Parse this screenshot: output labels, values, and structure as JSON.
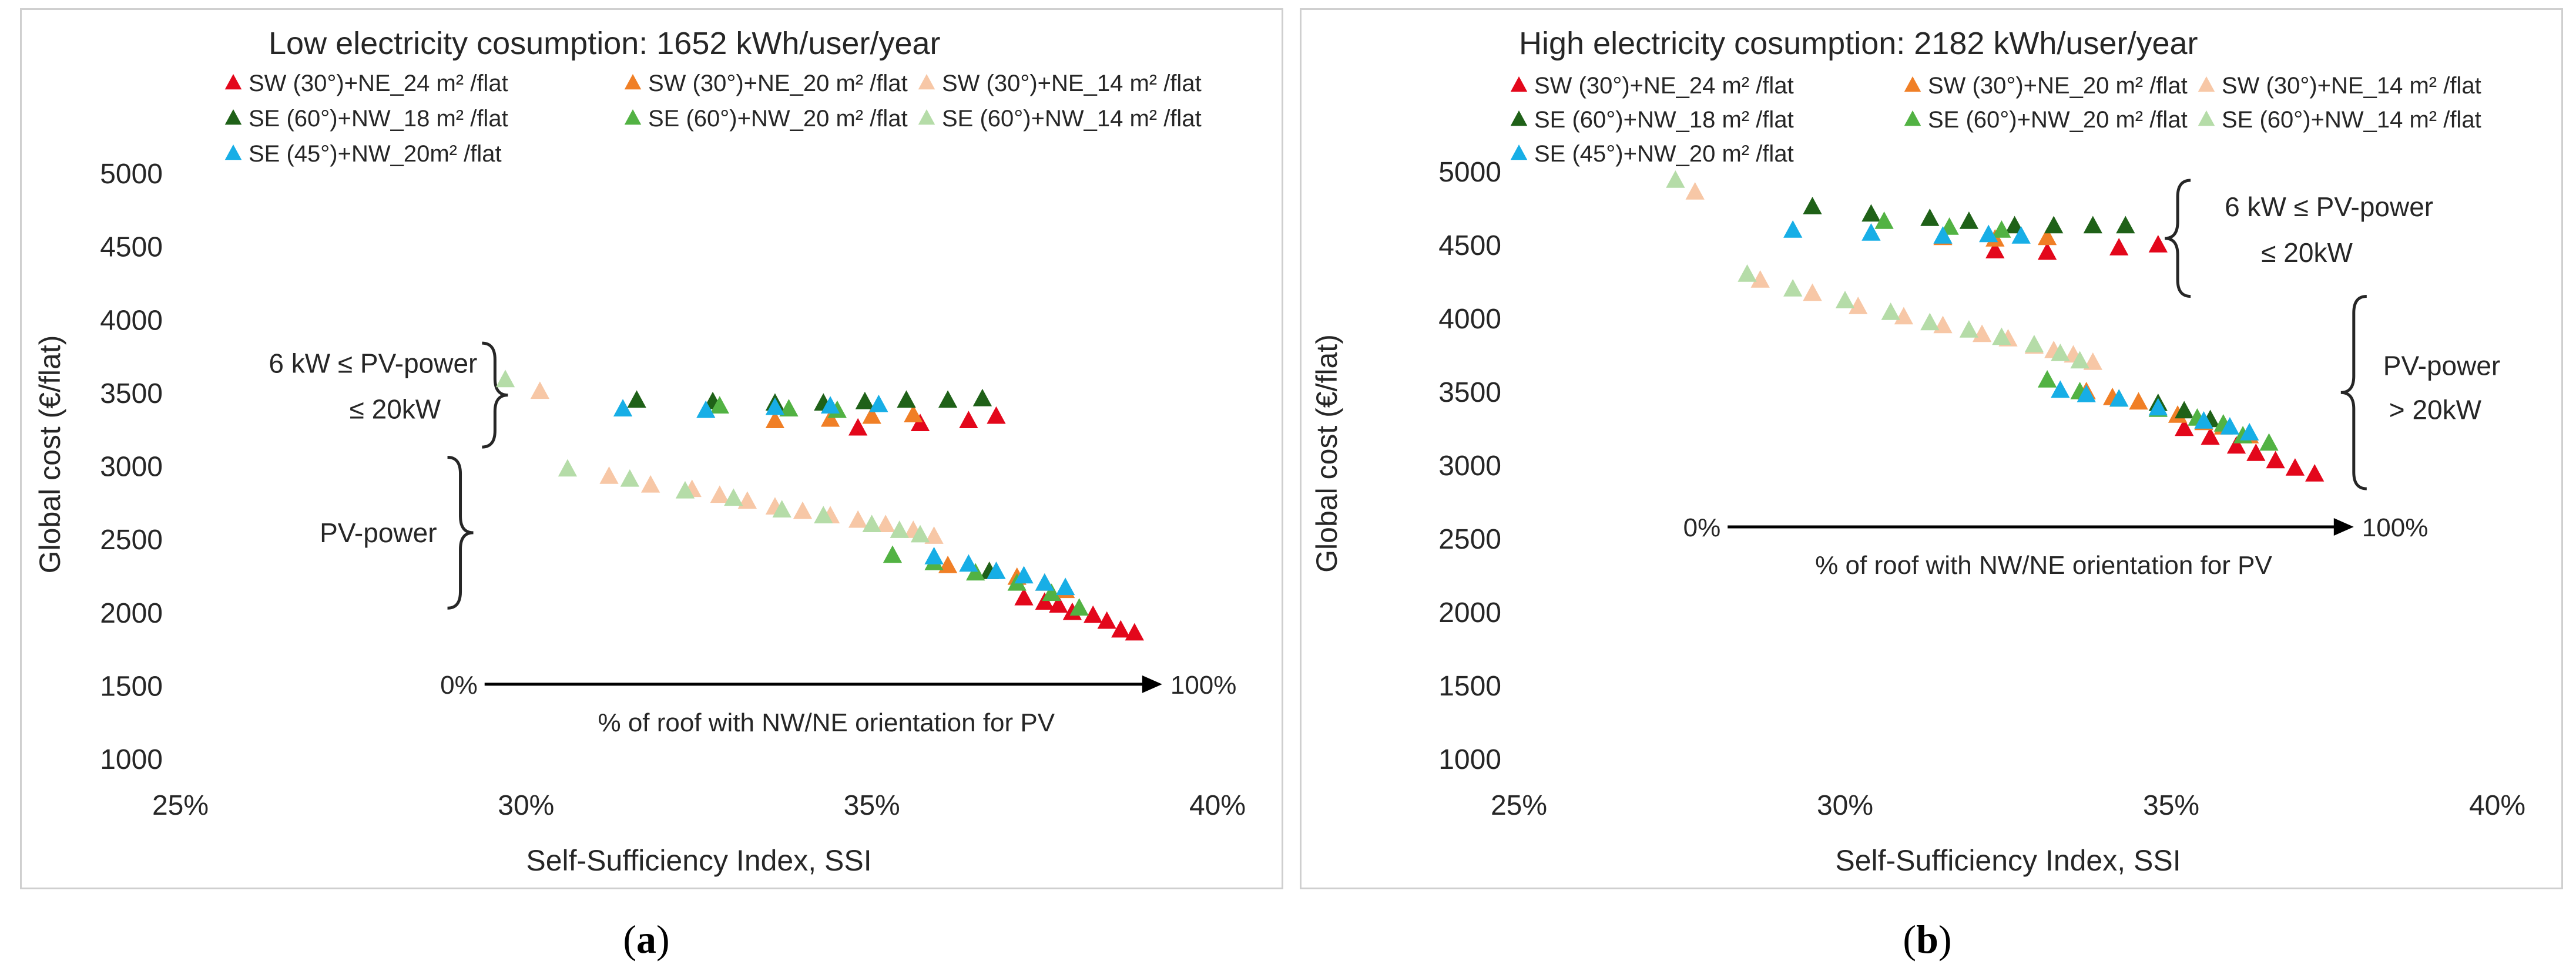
{
  "colors": {
    "sw24": "#e3071b",
    "sw20": "#f07f26",
    "sw14": "#f7c7a6",
    "se18": "#1f6118",
    "se20": "#52b243",
    "se14": "#b5dca8",
    "se45": "#17aee6"
  },
  "captions": {
    "a": "a",
    "b": "b"
  },
  "chart_data": [
    {
      "type": "scatter",
      "title": "Low electricity cosumption: 1652 kWh/user/year",
      "xlabel": "Self-Sufficiency Index, SSI",
      "ylabel": "Global cost (€/flat)",
      "xlim": [
        0.25,
        0.4
      ],
      "ylim": [
        1000,
        5000
      ],
      "xticks": [
        0.25,
        0.3,
        0.35,
        0.4
      ],
      "xtick_labels": [
        "25%",
        "30%",
        "35%",
        "40%"
      ],
      "yticks": [
        1000,
        1500,
        2000,
        2500,
        3000,
        3500,
        4000,
        4500,
        5000
      ],
      "ytick_labels": [
        "1000",
        "1500",
        "2000",
        "2500",
        "3000",
        "3500",
        "4000",
        "4500",
        "5000"
      ],
      "grid": false,
      "legend_placement": "top-left",
      "series": [
        {
          "name": "SW (30°)+NE_24 m² /flat",
          "color_key": "sw24",
          "legend_row": 0,
          "legend_col": 0,
          "x": [
            0.348,
            0.357,
            0.364,
            0.368,
            0.372,
            0.375,
            0.377,
            0.379,
            0.382,
            0.384,
            0.386,
            0.388
          ],
          "y": [
            3260,
            3290,
            3310,
            3340,
            2100,
            2070,
            2050,
            2000,
            1980,
            1940,
            1880,
            1860
          ]
        },
        {
          "name": "SW (30°)+NE_20 m² /flat",
          "color_key": "sw20",
          "legend_row": 0,
          "legend_col": 1,
          "x": [
            0.336,
            0.344,
            0.35,
            0.356,
            0.361,
            0.367,
            0.371,
            0.375,
            0.378
          ],
          "y": [
            3310,
            3320,
            3340,
            3350,
            2320,
            2280,
            2240,
            2200,
            2150
          ]
        },
        {
          "name": "SW (30°)+NE_14 m² /flat",
          "color_key": "sw14",
          "legend_row": 0,
          "legend_col": 2,
          "x": [
            0.302,
            0.312,
            0.318,
            0.324,
            0.328,
            0.332,
            0.336,
            0.34,
            0.344,
            0.348,
            0.352,
            0.356,
            0.359
          ],
          "y": [
            3510,
            2930,
            2870,
            2840,
            2800,
            2760,
            2720,
            2690,
            2660,
            2630,
            2600,
            2560,
            2520
          ]
        },
        {
          "name": "SE (60°)+NW_18 m² /flat",
          "color_key": "se18",
          "legend_row": 1,
          "legend_col": 0,
          "x": [
            0.316,
            0.327,
            0.336,
            0.343,
            0.349,
            0.355,
            0.361,
            0.366,
            0.367
          ],
          "y": [
            3450,
            3440,
            3430,
            3430,
            3440,
            3450,
            3450,
            3460,
            2280
          ]
        },
        {
          "name": "SE (60°)+NW_20 m² /flat",
          "color_key": "se20",
          "legend_row": 1,
          "legend_col": 1,
          "x": [
            0.328,
            0.338,
            0.345,
            0.353,
            0.359,
            0.365,
            0.371,
            0.376,
            0.38
          ],
          "y": [
            3410,
            3390,
            3380,
            2390,
            2340,
            2270,
            2200,
            2130,
            2030
          ]
        },
        {
          "name": "SE (60°)+NW_14 m² /flat",
          "color_key": "se14",
          "legend_row": 1,
          "legend_col": 2,
          "x": [
            0.297,
            0.306,
            0.315,
            0.323,
            0.33,
            0.337,
            0.343,
            0.35,
            0.354,
            0.357
          ],
          "y": [
            3590,
            2980,
            2910,
            2830,
            2780,
            2700,
            2660,
            2600,
            2560,
            2530
          ]
        },
        {
          "name": "SE (45°)+NW_20m² /flat",
          "color_key": "se45",
          "legend_row": 2,
          "legend_col": 0,
          "x": [
            0.314,
            0.326,
            0.336,
            0.344,
            0.351,
            0.359,
            0.364,
            0.368,
            0.372,
            0.375,
            0.378
          ],
          "y": [
            3390,
            3380,
            3400,
            3410,
            3420,
            2380,
            2330,
            2280,
            2250,
            2200,
            2170
          ]
        }
      ],
      "annotations": [
        {
          "kind": "brace",
          "y_from": 3130,
          "y_to": 3840,
          "x_at": 0.2955,
          "text_lines": [
            "6 kW ≤ PV-power",
            "≤   20kW"
          ]
        },
        {
          "kind": "brace",
          "y_from": 2030,
          "y_to": 3060,
          "x_at": 0.2905,
          "text_lines": [
            "PV-power"
          ]
        },
        {
          "kind": "arrow",
          "y_at": 1510,
          "x_from": 0.294,
          "x_to": 0.392,
          "start_label": "0%",
          "end_label": "100%",
          "text": "% of roof with NW/NE orientation for PV"
        }
      ]
    },
    {
      "type": "scatter",
      "title": "High electricity cosumption: 2182 kWh/user/year",
      "xlabel": "Self-Sufficiency Index, SSI",
      "ylabel": "Global cost (€/flat)",
      "xlim": [
        0.25,
        0.4
      ],
      "ylim": [
        1000,
        5000
      ],
      "xticks": [
        0.25,
        0.3,
        0.35,
        0.4
      ],
      "xtick_labels": [
        "25%",
        "30%",
        "35%",
        "40%"
      ],
      "yticks": [
        1000,
        1500,
        2000,
        2500,
        3000,
        3500,
        4000,
        4500,
        5000
      ],
      "ytick_labels": [
        "1000",
        "1500",
        "2000",
        "2500",
        "3000",
        "3500",
        "4000",
        "4500",
        "5000"
      ],
      "grid": false,
      "legend_placement": "top-left",
      "series": [
        {
          "name": "SW (30°)+NE_24 m² /flat",
          "color_key": "sw24",
          "legend_row": 0,
          "legend_col": 0,
          "x": [
            0.323,
            0.331,
            0.342,
            0.348,
            0.352,
            0.356,
            0.36,
            0.363,
            0.366,
            0.369,
            0.372
          ],
          "y": [
            4460,
            4450,
            4480,
            4500,
            3250,
            3190,
            3130,
            3080,
            3030,
            2980,
            2940
          ]
        },
        {
          "name": "SW (30°)+NE_20 m² /flat",
          "color_key": "sw20",
          "legend_row": 0,
          "legend_col": 1,
          "x": [
            0.315,
            0.323,
            0.331,
            0.337,
            0.341,
            0.345,
            0.351,
            0.355,
            0.358,
            0.362
          ],
          "y": [
            4550,
            4540,
            4550,
            3500,
            3460,
            3430,
            3340,
            3290,
            3260,
            3200
          ]
        },
        {
          "name": "SW (30°)+NE_14 m² /flat",
          "color_key": "sw14",
          "legend_row": 0,
          "legend_col": 2,
          "x": [
            0.277,
            0.287,
            0.295,
            0.302,
            0.309,
            0.315,
            0.321,
            0.325,
            0.329,
            0.332,
            0.335,
            0.338
          ],
          "y": [
            4860,
            4260,
            4170,
            4080,
            4010,
            3950,
            3890,
            3860,
            3810,
            3780,
            3750,
            3700
          ]
        },
        {
          "name": "SE (60°)+NW_18 m² /flat",
          "color_key": "se18",
          "legend_row": 1,
          "legend_col": 0,
          "x": [
            0.295,
            0.304,
            0.313,
            0.319,
            0.326,
            0.332,
            0.338,
            0.343,
            0.348,
            0.352,
            0.356
          ],
          "y": [
            4760,
            4710,
            4680,
            4660,
            4630,
            4630,
            4630,
            4630,
            3420,
            3370,
            3310
          ]
        },
        {
          "name": "SE (60°)+NW_20 m² /flat",
          "color_key": "se20",
          "legend_row": 1,
          "legend_col": 1,
          "x": [
            0.306,
            0.316,
            0.324,
            0.331,
            0.336,
            0.342,
            0.348,
            0.354,
            0.358,
            0.361,
            0.365
          ],
          "y": [
            4660,
            4620,
            4600,
            3580,
            3500,
            3450,
            3380,
            3320,
            3280,
            3200,
            3150
          ]
        },
        {
          "name": "SE (60°)+NW_14 m² /flat",
          "color_key": "se14",
          "legend_row": 1,
          "legend_col": 2,
          "x": [
            0.274,
            0.285,
            0.292,
            0.3,
            0.307,
            0.313,
            0.319,
            0.324,
            0.329,
            0.333,
            0.336
          ],
          "y": [
            4940,
            4300,
            4200,
            4120,
            4040,
            3970,
            3920,
            3870,
            3820,
            3760,
            3710
          ]
        },
        {
          "name": "SE (45°)+NW_20 m² /flat",
          "color_key": "se45",
          "legend_row": 2,
          "legend_col": 0,
          "x": [
            0.292,
            0.304,
            0.315,
            0.322,
            0.327,
            0.333,
            0.337,
            0.342,
            0.348,
            0.355,
            0.359,
            0.362
          ],
          "y": [
            4600,
            4580,
            4560,
            4570,
            4560,
            3510,
            3480,
            3450,
            3390,
            3300,
            3260,
            3220
          ]
        }
      ],
      "annotations": [
        {
          "kind": "brace",
          "y_from": 4150,
          "y_to": 4940,
          "x_at": 0.351,
          "text_lines": [
            "6 kW ≤ PV-power",
            "≤   20kW"
          ]
        },
        {
          "kind": "brace",
          "y_from": 2840,
          "y_to": 4150,
          "x_at": 0.378,
          "text_lines": [
            "PV-power",
            "> 20kW"
          ]
        },
        {
          "kind": "arrow",
          "y_at": 2580,
          "x_from": 0.282,
          "x_to": 0.378,
          "start_label": "0%",
          "end_label": "100%",
          "text": "% of roof with NW/NE orientation for PV"
        }
      ]
    }
  ]
}
